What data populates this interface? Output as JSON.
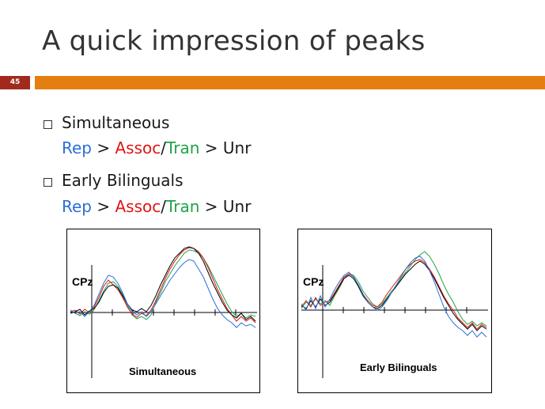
{
  "slide": {
    "title": "A quick impression of peaks",
    "number": "45"
  },
  "colors": {
    "accent_bar": "#e57e10",
    "number_badge": "#a12a1c",
    "rep": "#2a6fd6",
    "assoc": "#e01515",
    "tran": "#1fa24a",
    "unr": "#1a1a1a"
  },
  "bullets": [
    {
      "heading": "Simultaneous",
      "order": {
        "rep": "Rep",
        "gt1": " > ",
        "assoc": "Assoc",
        "slash": "/",
        "tran": "Tran",
        "gt2": " > ",
        "unr": "Unr"
      }
    },
    {
      "heading": "Early Bilinguals",
      "order": {
        "rep": "Rep",
        "gt1": " > ",
        "assoc": "Assoc",
        "slash": "/",
        "tran": "Tran",
        "gt2": " > ",
        "unr": "Unr"
      }
    }
  ],
  "panels": [
    {
      "electrode": "CPz",
      "label": "Simultaneous"
    },
    {
      "electrode": "CPz",
      "label": "Early Bilinguals"
    }
  ]
}
